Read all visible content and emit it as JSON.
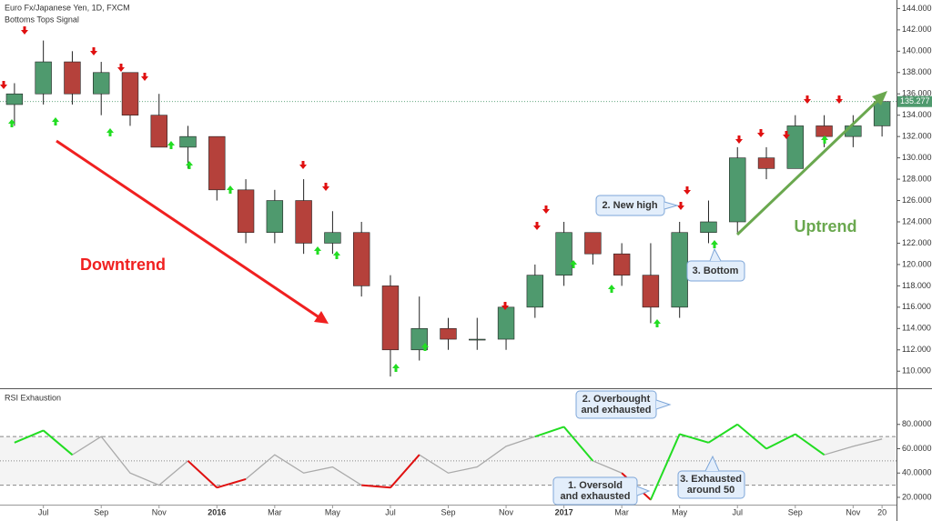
{
  "chart_data": [
    {
      "type": "candlestick",
      "title": "Euro Fx/Japanese Yen, 1D, FXCM",
      "subtitle": "Bottoms Tops Signal",
      "categories": [
        null,
        "Jul",
        null,
        "Sep",
        null,
        "Nov",
        null,
        "2016",
        null,
        "Mar",
        null,
        "May",
        null,
        "Jul",
        null,
        "Sep",
        null,
        "Nov",
        null,
        "2017",
        null,
        "Mar",
        null,
        "May",
        null,
        "Jul",
        null,
        "Sep",
        null,
        "Nov",
        "20"
      ],
      "open": [
        135,
        136,
        139,
        136,
        138,
        134,
        131,
        132,
        127,
        123,
        126,
        122,
        123,
        118,
        112,
        114,
        113,
        113,
        116,
        119,
        123,
        121,
        119,
        116,
        123,
        124,
        130,
        129,
        133,
        132,
        133
      ],
      "high": [
        137,
        141,
        140,
        139,
        138,
        136,
        133,
        132,
        128,
        127,
        128,
        125,
        124,
        119,
        117,
        115,
        115,
        116,
        120,
        124,
        123,
        122,
        122,
        124,
        126,
        131,
        131,
        134,
        134,
        134,
        135.5
      ],
      "low": [
        133,
        135,
        135,
        134,
        133,
        131,
        129,
        126,
        122,
        122,
        121,
        121,
        117,
        109.5,
        111,
        112,
        112,
        112,
        115,
        118,
        120,
        118,
        114.5,
        115,
        122,
        123,
        128,
        129,
        131,
        131,
        132
      ],
      "close": [
        136,
        139,
        136,
        138,
        134,
        131,
        132,
        127,
        123,
        126,
        122,
        123,
        118,
        112,
        114,
        113,
        113,
        116,
        119,
        123,
        121,
        119,
        116,
        123,
        124,
        130,
        129,
        133,
        132,
        133,
        135.277
      ],
      "up_color": "#4f9a6e",
      "down_color": "#b5413b",
      "ylim": [
        108.4,
        144.8
      ],
      "yticks": [
        {
          "value": 110,
          "label": "110.000"
        },
        {
          "value": 112,
          "label": "112.000"
        },
        {
          "value": 114,
          "label": "114.000"
        },
        {
          "value": 116,
          "label": "116.000"
        },
        {
          "value": 118,
          "label": "118.000"
        },
        {
          "value": 120,
          "label": "120.000"
        },
        {
          "value": 122,
          "label": "122.000"
        },
        {
          "value": 124,
          "label": "124.000"
        },
        {
          "value": 126,
          "label": "126.000"
        },
        {
          "value": 128,
          "label": "128.000"
        },
        {
          "value": 130,
          "label": "130.000"
        },
        {
          "value": 132,
          "label": "132.000"
        },
        {
          "value": 134,
          "label": "134.000"
        },
        {
          "value": 136,
          "label": "136.000"
        },
        {
          "value": 138,
          "label": "138.000"
        },
        {
          "value": 140,
          "label": "140.000"
        },
        {
          "value": 142,
          "label": "142.000"
        },
        {
          "value": 144,
          "label": "144.000"
        }
      ],
      "annotations": {
        "downtrend": "Downtrend",
        "uptrend": "Uptrend",
        "new_high": "2. New high",
        "bottom": "3. Bottom"
      }
    },
    {
      "type": "line",
      "title": "RSI Exhaustion",
      "values": [
        65,
        75,
        55,
        70,
        40,
        30,
        50,
        28,
        35,
        55,
        40,
        45,
        30,
        28,
        55,
        40,
        45,
        62,
        70,
        78,
        50,
        40,
        18,
        72,
        65,
        80,
        60,
        72,
        55,
        62,
        68
      ],
      "color": "#aaaaaa",
      "overbought_color": "#22dd22",
      "oversold_color": "#e01010",
      "levels": [
        30,
        50,
        70
      ],
      "ylim": [
        14,
        109
      ],
      "yticks": [
        {
          "value": 20,
          "label": "20.0000"
        },
        {
          "value": 40,
          "label": "40.0000"
        },
        {
          "value": 60,
          "label": "60.0000"
        },
        {
          "value": 80,
          "label": "80.0000"
        }
      ],
      "annotations": {
        "overbought": [
          "2. Overbought",
          "and exhausted"
        ],
        "oversold": [
          "1. Oversold",
          "and exhausted"
        ],
        "exhausted": [
          "3. Exhausted",
          "around 50"
        ]
      }
    }
  ]
}
